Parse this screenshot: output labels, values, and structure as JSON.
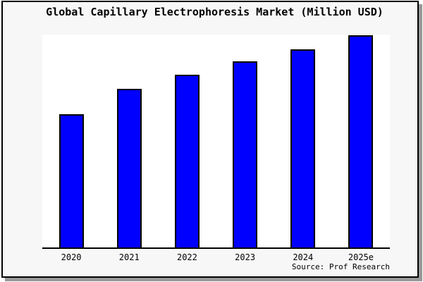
{
  "window": {
    "panel_background": "#f7f7f7",
    "frame_border_color": "#000000",
    "shadow_color": "#999999"
  },
  "chart_data": {
    "type": "bar",
    "title": "Global Capillary Electrophoresis Market (Million USD)",
    "categories": [
      "2020",
      "2021",
      "2022",
      "2023",
      "2024",
      "2025e"
    ],
    "values": [
      62.7,
      74.9,
      81.3,
      87.6,
      93.4,
      100
    ],
    "values_unit": "percent of tallest bar (y-axis shows no ticks, labels or gridlines)",
    "xlabel": "",
    "ylabel": "",
    "legend_position": "none",
    "grid": false,
    "axis_lines": "bottom only",
    "bar_fill_color": "#0000FF",
    "bar_edge_color": "#000000",
    "plot_background": "#FFFFFF",
    "source_note": "Source: Prof Research"
  }
}
